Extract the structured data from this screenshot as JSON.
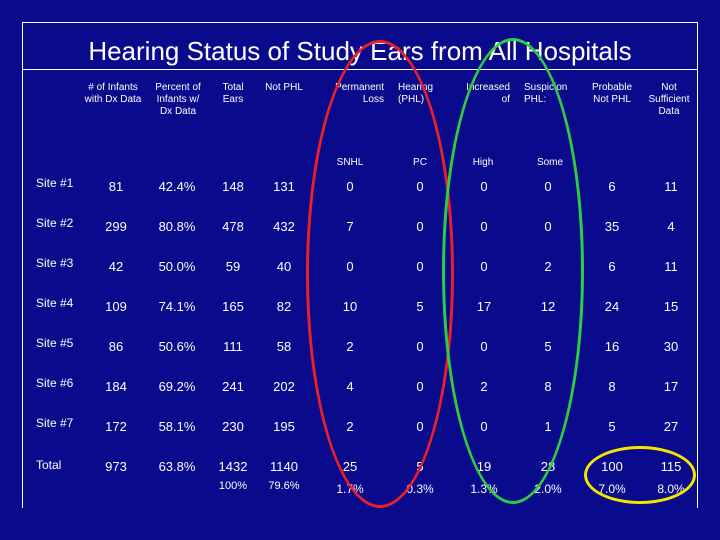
{
  "title": "Hearing Status of Study Ears from All Hospitals",
  "headers": {
    "infants": "# of Infants with Dx Data",
    "percent": "Percent of Infants w/ Dx Data",
    "total": "Total Ears",
    "notphl": "Not PHL",
    "permanent": "Permanent Loss",
    "hearing": "Hearing (PHL)",
    "increased": "Increased of",
    "suspicion": "Suspicion PHL:",
    "probable": "Probable Not PHL",
    "notsufficient": "Not Sufficient Data",
    "snhl": "SNHL",
    "pc": "PC",
    "high": "High",
    "some": "Some"
  },
  "rows": [
    {
      "site": "Site #1",
      "vals": [
        "81",
        "42.4%",
        "148",
        "131",
        "0",
        "0",
        "0",
        "0",
        "6",
        "11"
      ]
    },
    {
      "site": "Site #2",
      "vals": [
        "299",
        "80.8%",
        "478",
        "432",
        "7",
        "0",
        "0",
        "0",
        "35",
        "4"
      ]
    },
    {
      "site": "Site #3",
      "vals": [
        "42",
        "50.0%",
        "59",
        "40",
        "0",
        "0",
        "0",
        "2",
        "6",
        "11"
      ]
    },
    {
      "site": "Site #4",
      "vals": [
        "109",
        "74.1%",
        "165",
        "82",
        "10",
        "5",
        "17",
        "12",
        "24",
        "15"
      ]
    },
    {
      "site": "Site #5",
      "vals": [
        "86",
        "50.6%",
        "111",
        "58",
        "2",
        "0",
        "0",
        "5",
        "16",
        "30"
      ]
    },
    {
      "site": "Site #6",
      "vals": [
        "184",
        "69.2%",
        "241",
        "202",
        "4",
        "0",
        "2",
        "8",
        "8",
        "17"
      ]
    },
    {
      "site": "Site #7",
      "vals": [
        "172",
        "58.1%",
        "230",
        "195",
        "2",
        "0",
        "0",
        "1",
        "5",
        "27"
      ]
    }
  ],
  "total": {
    "label": "Total",
    "vals": [
      "973",
      "63.8%",
      "1432",
      "1140",
      "25",
      "5",
      "19",
      "28",
      "100",
      "115"
    ],
    "pcts": [
      "",
      "",
      "100%",
      "79.6%",
      "1.7%",
      "0.3%",
      "1.3%",
      "2.0%",
      "7.0%",
      "8.0%"
    ]
  },
  "colors": {
    "background": "#0a0a8c",
    "oval_red": "#e8202a",
    "oval_green": "#2ecc40",
    "oval_yellow": "#f2e600"
  }
}
